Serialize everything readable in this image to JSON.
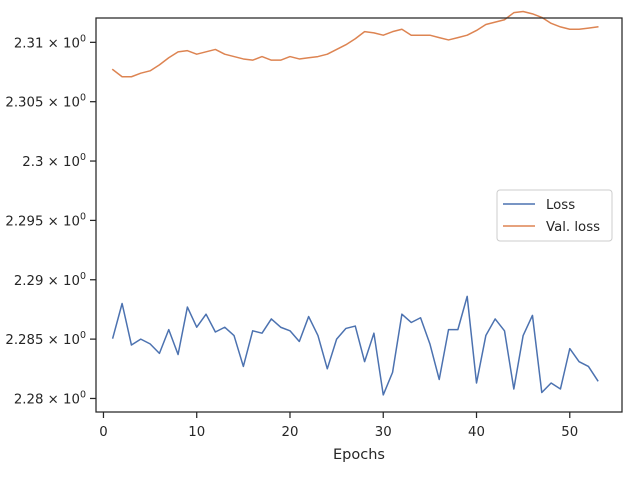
{
  "chart_data": {
    "type": "line",
    "title": "",
    "xlabel": "Epochs",
    "ylabel": "",
    "xlim": [
      -0.8,
      55.6
    ],
    "ylim": [
      2.27886,
      2.31205
    ],
    "x_ticks": [
      0,
      10,
      20,
      30,
      40,
      50
    ],
    "x_tick_labels": [
      "0",
      "10",
      "20",
      "30",
      "40",
      "50"
    ],
    "y_ticks": [
      2.28,
      2.285,
      2.29,
      2.295,
      2.3,
      2.305,
      2.31
    ],
    "y_tick_labels": [
      {
        "mant": "2.28",
        "base": "10",
        "exp": "0"
      },
      {
        "mant": "2.285",
        "base": "10",
        "exp": "0"
      },
      {
        "mant": "2.29",
        "base": "10",
        "exp": "0"
      },
      {
        "mant": "2.295",
        "base": "10",
        "exp": "0"
      },
      {
        "mant": "2.3",
        "base": "10",
        "exp": "0"
      },
      {
        "mant": "2.305",
        "base": "10",
        "exp": "0"
      },
      {
        "mant": "2.31",
        "base": "10",
        "exp": "0"
      }
    ],
    "grid": false,
    "legend_position": "center-right",
    "x": [
      1,
      2,
      3,
      4,
      5,
      6,
      7,
      8,
      9,
      10,
      11,
      12,
      13,
      14,
      15,
      16,
      17,
      18,
      19,
      20,
      21,
      22,
      23,
      24,
      25,
      26,
      27,
      28,
      29,
      30,
      31,
      32,
      33,
      34,
      35,
      36,
      37,
      38,
      39,
      40,
      41,
      42,
      43,
      44,
      45,
      46,
      47,
      48,
      49,
      50,
      51,
      52,
      53
    ],
    "series": [
      {
        "name": "Loss",
        "color": "#4c72b0",
        "values": [
          2.2851,
          2.288,
          2.2845,
          2.285,
          2.2846,
          2.2838,
          2.2858,
          2.2837,
          2.2877,
          2.286,
          2.2871,
          2.2856,
          2.286,
          2.2853,
          2.2827,
          2.2857,
          2.2855,
          2.2867,
          2.286,
          2.2857,
          2.2848,
          2.2869,
          2.2853,
          2.2825,
          2.285,
          2.2859,
          2.2861,
          2.2831,
          2.2855,
          2.2803,
          2.2822,
          2.2871,
          2.2864,
          2.2868,
          2.2846,
          2.2816,
          2.2858,
          2.2858,
          2.2886,
          2.2813,
          2.2853,
          2.2867,
          2.2857,
          2.2808,
          2.2853,
          2.287,
          2.2805,
          2.2813,
          2.2808,
          2.2842,
          2.2831,
          2.2827,
          2.2815
        ]
      },
      {
        "name": "Val. loss",
        "color": "#dd8452",
        "values": [
          2.3077,
          2.3071,
          2.3071,
          2.3074,
          2.3076,
          2.3081,
          2.3087,
          2.3092,
          2.3093,
          2.309,
          2.3092,
          2.3094,
          2.309,
          2.3088,
          2.3086,
          2.3085,
          2.3088,
          2.3085,
          2.3085,
          2.3088,
          2.3086,
          2.3087,
          2.3088,
          2.309,
          2.3094,
          2.3098,
          2.3103,
          2.3109,
          2.3108,
          2.3106,
          2.3109,
          2.3111,
          2.3106,
          2.3106,
          2.3106,
          2.3104,
          2.3102,
          2.3104,
          2.3106,
          2.311,
          2.3115,
          2.3117,
          2.3119,
          2.3125,
          2.3126,
          2.3124,
          2.3121,
          2.3116,
          2.3113,
          2.3111,
          2.3111,
          2.3112,
          2.3113
        ]
      }
    ]
  }
}
